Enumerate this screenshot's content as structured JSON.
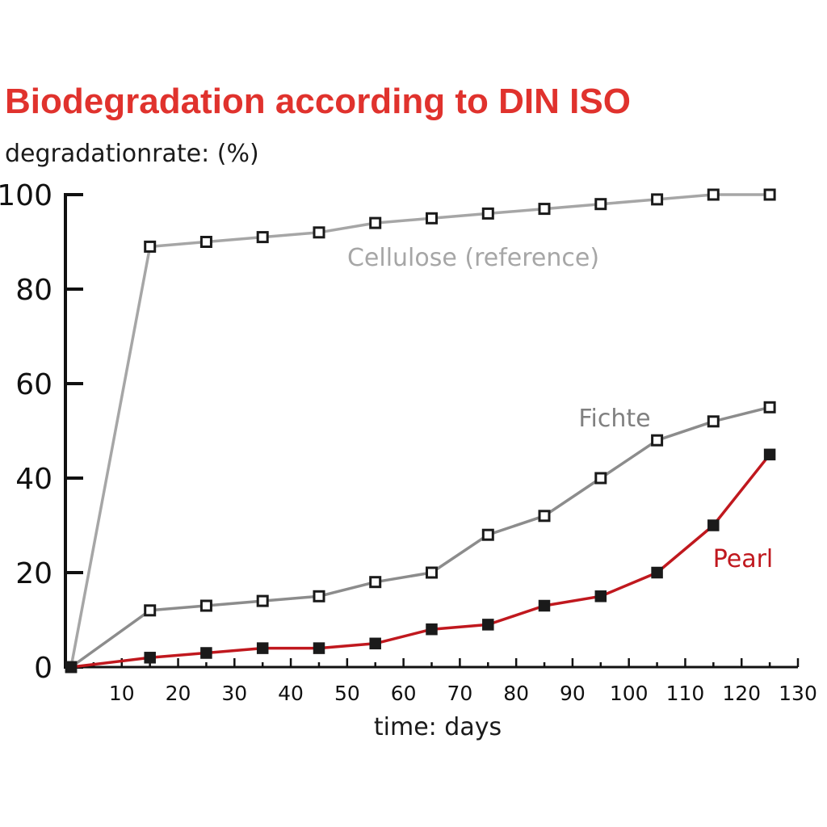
{
  "chart_data": {
    "type": "line",
    "title": "Biodegradation according to DIN ISO",
    "ylabel": "degradationrate: (%)",
    "xlabel": "time: days",
    "xlim": [
      0,
      130
    ],
    "ylim": [
      0,
      100
    ],
    "x_ticks": [
      "10",
      "20",
      "30",
      "40",
      "50",
      "60",
      "70",
      "80",
      "90",
      "100",
      "110",
      "120",
      "130"
    ],
    "y_ticks": [
      "0",
      "20",
      "40",
      "60",
      "80",
      "100"
    ],
    "grid": false,
    "legend": "none",
    "title_color": "#e0322d",
    "series": [
      {
        "name": "Cellulose (reference)",
        "color": "#a6a6a6",
        "marker": "hollow-square",
        "x": [
          1,
          15,
          25,
          35,
          45,
          55,
          65,
          75,
          85,
          95,
          105,
          115,
          125
        ],
        "values": [
          0,
          89,
          90,
          91,
          92,
          94,
          95,
          96,
          97,
          98,
          99,
          100,
          100
        ]
      },
      {
        "name": "Fichte",
        "color": "#8c8c8c",
        "marker": "hollow-square",
        "x": [
          1,
          15,
          25,
          35,
          45,
          55,
          65,
          75,
          85,
          95,
          105,
          115,
          125
        ],
        "values": [
          0,
          12,
          13,
          14,
          15,
          18,
          20,
          28,
          32,
          40,
          48,
          52,
          55
        ]
      },
      {
        "name": "Pearl",
        "color": "#c0181e",
        "marker": "filled-square",
        "x": [
          1,
          15,
          25,
          35,
          45,
          55,
          65,
          75,
          85,
          95,
          105,
          115,
          125
        ],
        "values": [
          0,
          2,
          3,
          4,
          4,
          5,
          8,
          9,
          13,
          15,
          20,
          30,
          45
        ]
      }
    ]
  }
}
